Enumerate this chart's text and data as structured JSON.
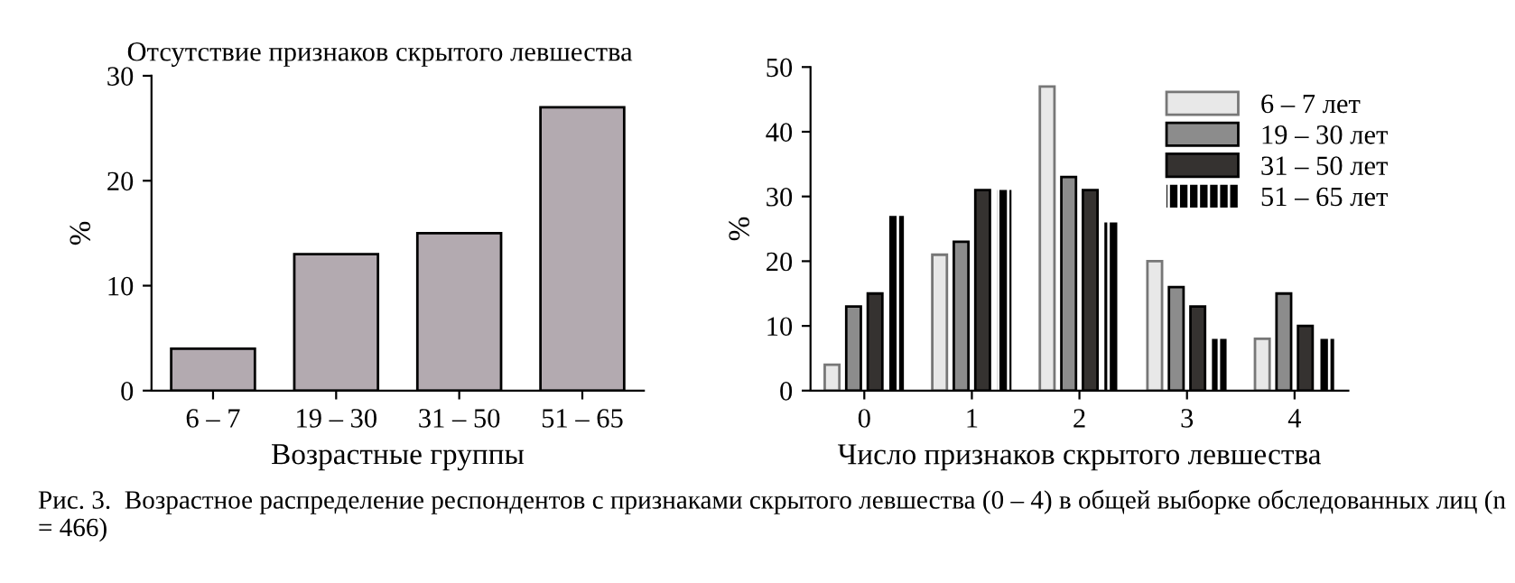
{
  "chart_data": [
    {
      "type": "bar",
      "title": "Отсутствие признаков скрытого левшества",
      "xlabel": "Возрастные группы",
      "ylabel": "%",
      "categories": [
        "6 – 7",
        "19 – 30",
        "31 – 50",
        "51 – 65"
      ],
      "values": [
        4,
        13,
        15,
        27
      ],
      "color": "#b3aab0",
      "ylim": [
        0,
        30
      ],
      "yticks": [
        0,
        10,
        20,
        30
      ],
      "grid": false,
      "legend": false
    },
    {
      "type": "bar",
      "xlabel": "Число признаков скрытого левшества",
      "ylabel": "%",
      "categories": [
        "0",
        "1",
        "2",
        "3",
        "4"
      ],
      "ylim": [
        0,
        50
      ],
      "yticks": [
        0,
        10,
        20,
        30,
        40,
        50
      ],
      "grid": false,
      "legend": "top right",
      "series": [
        {
          "name": "6 – 7 лет",
          "color": "#e8e8e8",
          "values": [
            4,
            21,
            47,
            20,
            8
          ]
        },
        {
          "name": "19 – 30 лет",
          "color": "#8c8c8c",
          "values": [
            13,
            23,
            33,
            16,
            15
          ]
        },
        {
          "name": "31 – 50 лет",
          "color": "#353230",
          "values": [
            15,
            31,
            31,
            13,
            10
          ]
        },
        {
          "name": "51 – 65 лет",
          "color": "#000000",
          "values": [
            27,
            31,
            26,
            8,
            8
          ]
        }
      ],
      "annotations": [
        "Рис. 3.  Возрастное распределение респондентов с признаками скрытого левшества (0 – 4) в общей выборке обследованных лиц (n = 466)"
      ]
    }
  ]
}
